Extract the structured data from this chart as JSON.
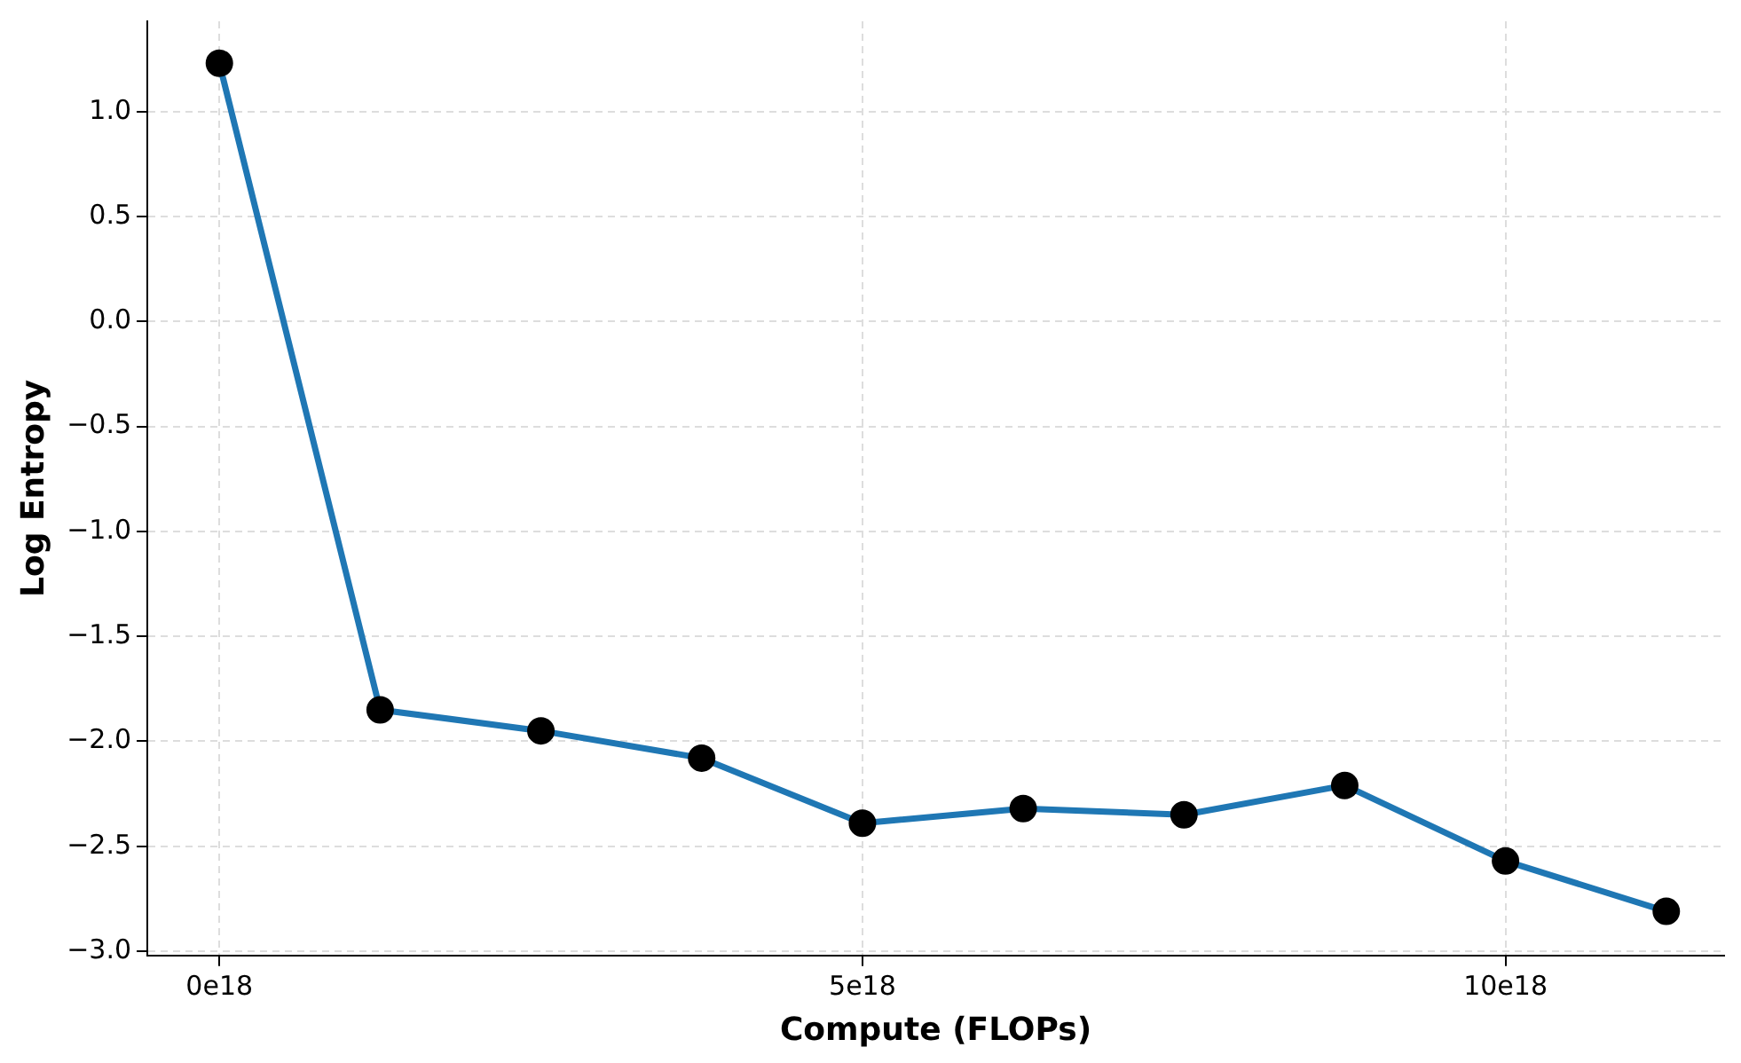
{
  "chart_data": {
    "type": "line",
    "xlabel": "Compute (FLOPs)",
    "ylabel": "Log Entropy",
    "x": [
      0,
      1.25e+18,
      2.5e+18,
      3.75e+18,
      5e+18,
      6.25e+18,
      7.5e+18,
      8.75e+18,
      1e+19,
      1.125e+19
    ],
    "series": [
      {
        "color": "#1f77b4",
        "values": [
          1.23,
          -1.85,
          -1.95,
          -2.08,
          -2.39,
          -2.32,
          -2.35,
          -2.21,
          -2.57,
          -2.81
        ]
      }
    ],
    "xlim": [
      -5.6e+17,
      1.17e+19
    ],
    "xticks": [
      {
        "value": 0,
        "label": "0e18"
      },
      {
        "value": 5e+18,
        "label": "5e18"
      },
      {
        "value": 1e+19,
        "label": "10e18"
      }
    ],
    "ylim": [
      -3.02,
      1.43
    ],
    "yticks": [
      {
        "value": -3,
        "label": "−3.0"
      },
      {
        "value": -2.5,
        "label": "−2.5"
      },
      {
        "value": -2,
        "label": "−2.0"
      },
      {
        "value": -1.5,
        "label": "−1.5"
      },
      {
        "value": -1,
        "label": "−1.0"
      },
      {
        "value": -0.5,
        "label": "−0.5"
      },
      {
        "value": 0,
        "label": "0.0"
      },
      {
        "value": 0.5,
        "label": "0.5"
      },
      {
        "value": 1,
        "label": "1.0"
      }
    ],
    "grid": true,
    "marker": "circle",
    "line_style": "solid",
    "legend": false
  }
}
